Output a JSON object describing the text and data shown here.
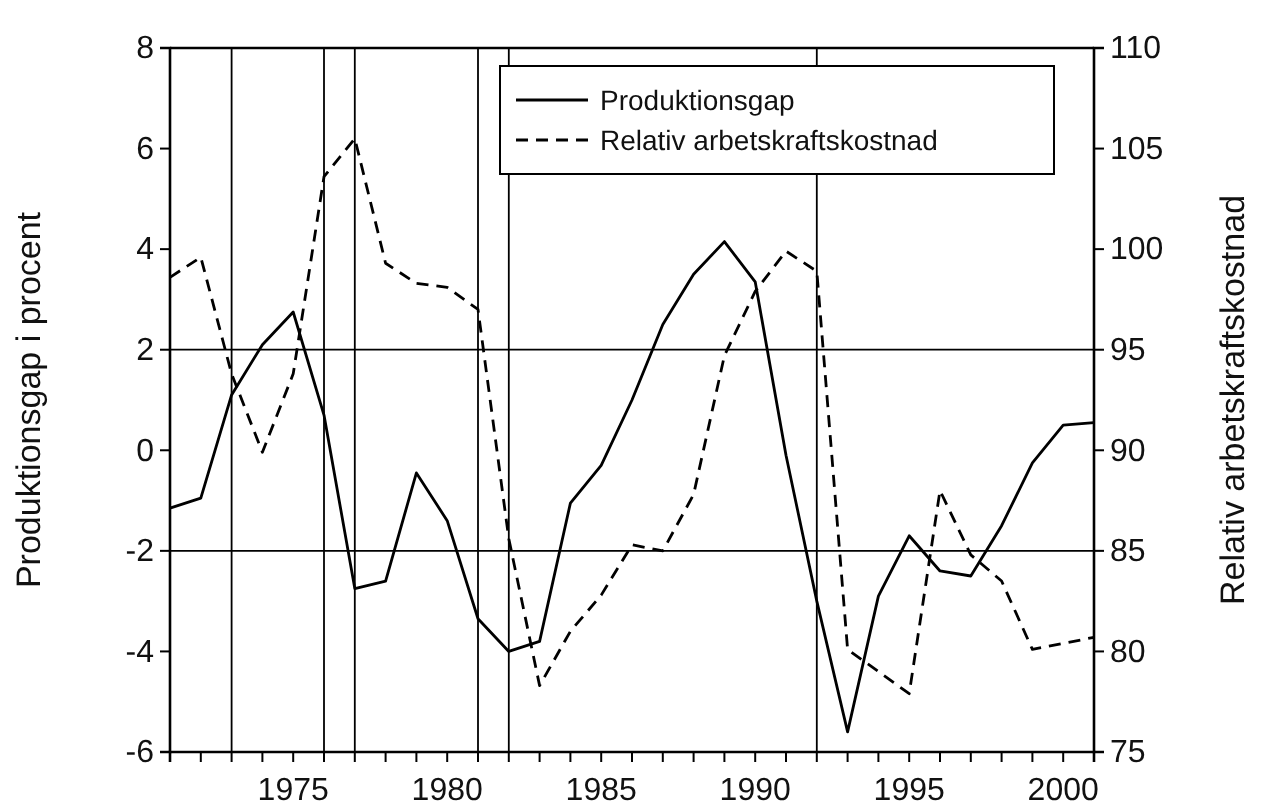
{
  "chart_data": {
    "type": "line",
    "ylabel": "Produktionsgap i procent",
    "y2label": "Relativ arbetskraftskostnad",
    "x": [
      1971,
      1972,
      1973,
      1974,
      1975,
      1976,
      1977,
      1978,
      1979,
      1980,
      1981,
      1982,
      1983,
      1984,
      1985,
      1986,
      1987,
      1988,
      1989,
      1990,
      1991,
      1992,
      1993,
      1994,
      1995,
      1996,
      1997,
      1998,
      1999,
      2000,
      2001
    ],
    "series": [
      {
        "name": "Produktionsgap",
        "color": "#000000",
        "line_style": "solid",
        "values": [
          -1.15,
          -0.95,
          1.1,
          2.1,
          2.75,
          0.7,
          -2.75,
          -2.6,
          -0.45,
          -1.4,
          -3.35,
          -4.0,
          -3.8,
          -1.05,
          -0.3,
          1.0,
          2.5,
          3.5,
          4.15,
          3.35,
          -0.1,
          -3.0,
          -5.6,
          -2.9,
          -1.7,
          -2.4,
          -2.5,
          -1.5,
          -0.25,
          0.5,
          0.55
        ]
      },
      {
        "name": "Relativ arbetskraftskostnad",
        "color": "#000000",
        "line_style": "dashed",
        "axis": "y2",
        "values": [
          98.6,
          99.6,
          93.8,
          89.9,
          93.8,
          103.6,
          105.5,
          99.3,
          98.3,
          98.1,
          97.0,
          85.6,
          78.3,
          81.0,
          82.8,
          85.3,
          85.0,
          87.8,
          94.7,
          97.9,
          99.9,
          98.9,
          80.1,
          79.0,
          77.9,
          88.0,
          84.8,
          83.5,
          80.1,
          80.4,
          80.7
        ]
      }
    ],
    "xlim": [
      1971,
      2001
    ],
    "xticks": [
      {
        "value": 1971,
        "label": null
      },
      {
        "value": 1972,
        "label": null
      },
      {
        "value": 1973,
        "label": null
      },
      {
        "value": 1974,
        "label": null
      },
      1975,
      {
        "value": 1976,
        "label": null
      },
      {
        "value": 1977,
        "label": null
      },
      {
        "value": 1978,
        "label": null
      },
      {
        "value": 1979,
        "label": null
      },
      1980,
      {
        "value": 1981,
        "label": null
      },
      {
        "value": 1982,
        "label": null
      },
      {
        "value": 1983,
        "label": null
      },
      {
        "value": 1984,
        "label": null
      },
      1985,
      {
        "value": 1986,
        "label": null
      },
      {
        "value": 1987,
        "label": null
      },
      {
        "value": 1988,
        "label": null
      },
      {
        "value": 1989,
        "label": null
      },
      1990,
      {
        "value": 1991,
        "label": null
      },
      {
        "value": 1992,
        "label": null
      },
      {
        "value": 1993,
        "label": null
      },
      {
        "value": 1994,
        "label": null
      },
      1995,
      {
        "value": 1996,
        "label": null
      },
      {
        "value": 1997,
        "label": null
      },
      {
        "value": 1998,
        "label": null
      },
      {
        "value": 1999,
        "label": null
      },
      2000,
      {
        "value": 2001,
        "label": null
      }
    ],
    "ylim": [
      -6,
      8
    ],
    "yticks": [
      -6,
      -4,
      -2,
      0,
      2,
      4,
      6,
      8
    ],
    "y2lim": [
      75,
      110
    ],
    "y2ticks": [
      75,
      80,
      85,
      90,
      95,
      100,
      105,
      110
    ],
    "ref_lines": [
      {
        "axis": "x",
        "value": 1973
      },
      {
        "axis": "x",
        "value": 1976
      },
      {
        "axis": "x",
        "value": 1977
      },
      {
        "axis": "x",
        "value": 1981
      },
      {
        "axis": "x",
        "value": 1982
      },
      {
        "axis": "x",
        "value": 1992
      },
      {
        "axis": "y",
        "value": 2
      },
      {
        "axis": "y",
        "value": -2
      }
    ],
    "legend": "top right",
    "grid": false
  }
}
